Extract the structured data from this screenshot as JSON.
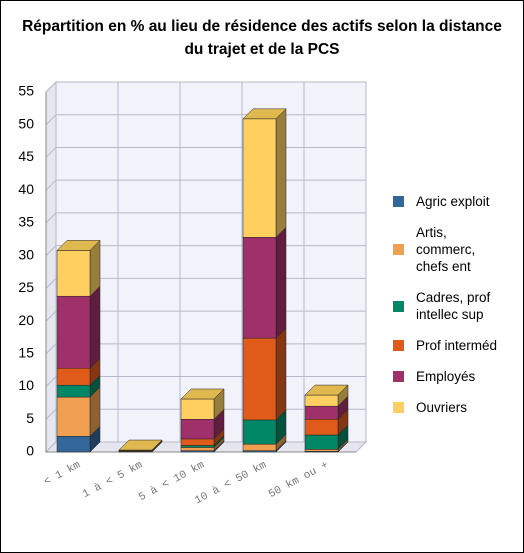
{
  "chart_data": {
    "type": "bar3d_stacked",
    "title": "Répartition en % au lieu de résidence des actifs selon la distance du trajet et de la PCS",
    "categories": [
      "< 1 km",
      "1 à < 5 km",
      "5 à < 10 km",
      "10 à < 50 km",
      "50 km ou +"
    ],
    "series": [
      {
        "name": "Agric exploit",
        "color": "#336699",
        "values": [
          2.4,
          0,
          0.2,
          0.2,
          0.1
        ]
      },
      {
        "name": "Artis, commerc, chefs ent",
        "color": "#f0a050",
        "values": [
          6.0,
          0,
          0.5,
          1.0,
          0.3
        ]
      },
      {
        "name": "Cadres, prof intellec sup",
        "color": "#008866",
        "values": [
          1.8,
          0,
          0.3,
          3.7,
          2.2
        ]
      },
      {
        "name": "Prof interméd",
        "color": "#e05a1a",
        "values": [
          2.6,
          0.1,
          1.0,
          12.5,
          2.4
        ]
      },
      {
        "name": "Employés",
        "color": "#a0306a",
        "values": [
          11.0,
          0.1,
          3.0,
          15.4,
          2.0
        ]
      },
      {
        "name": "Ouvriers",
        "color": "#ffd060",
        "values": [
          7.0,
          0.1,
          3.1,
          18.1,
          1.7
        ]
      }
    ],
    "ylim": [
      0,
      55
    ],
    "yticks": [
      0,
      5,
      10,
      15,
      20,
      25,
      30,
      35,
      40,
      45,
      50,
      55
    ],
    "grid": true
  }
}
